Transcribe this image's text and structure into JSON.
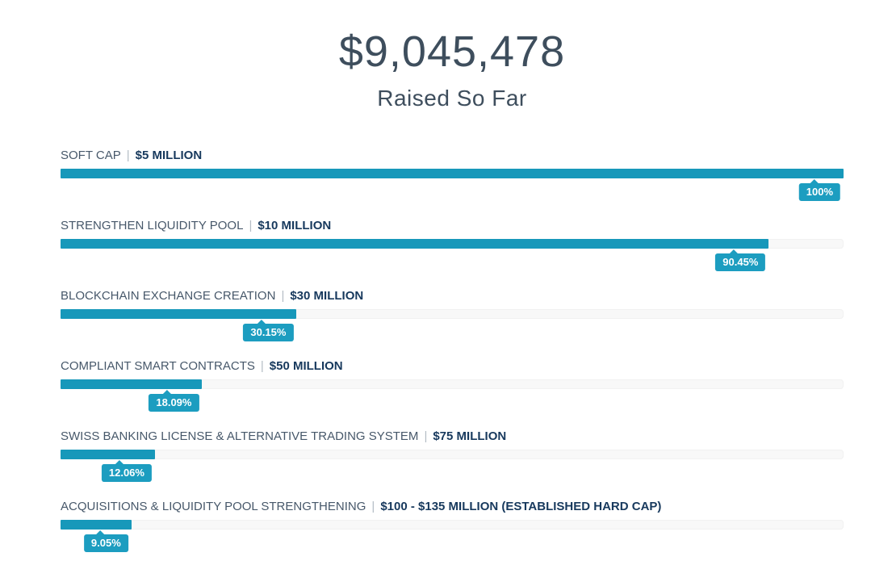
{
  "header": {
    "title": "$9,045,478",
    "subtitle": "Raised So Far"
  },
  "separator": "|",
  "milestones": [
    {
      "label": "SOFT CAP",
      "target": "$5 MILLION",
      "percent": "100%",
      "value": 100
    },
    {
      "label": "STRENGTHEN LIQUIDITY POOL",
      "target": "$10 MILLION",
      "percent": "90.45%",
      "value": 90.45
    },
    {
      "label": "BLOCKCHAIN EXCHANGE CREATION",
      "target": "$30 MILLION",
      "percent": "30.15%",
      "value": 30.15
    },
    {
      "label": "COMPLIANT SMART CONTRACTS",
      "target": "$50 MILLION",
      "percent": "18.09%",
      "value": 18.09
    },
    {
      "label": "SWISS BANKING LICENSE & ALTERNATIVE TRADING SYSTEM",
      "target": "$75 MILLION",
      "percent": "12.06%",
      "value": 12.06
    },
    {
      "label": "ACQUISITIONS & LIQUIDITY POOL STRENGTHENING",
      "target": "$100 - $135 MILLION (ESTABLISHED HARD CAP)",
      "percent": "9.05%",
      "value": 9.05
    }
  ],
  "colors": {
    "bar_fill": "#1798ba",
    "badge_background": "#1c9dc0",
    "badge_text": "#ffffff",
    "track_background": "#f8f8f8",
    "label_text": "#47586a",
    "target_text": "#17395d",
    "separator_text": "#b4bcc4",
    "title_text": "#3e4e5e"
  },
  "chart_data": {
    "type": "bar",
    "title": "$9,045,478 Raised So Far",
    "orientation": "horizontal",
    "categories": [
      "SOFT CAP | $5 MILLION",
      "STRENGTHEN LIQUIDITY POOL | $10 MILLION",
      "BLOCKCHAIN EXCHANGE CREATION | $30 MILLION",
      "COMPLIANT SMART CONTRACTS | $50 MILLION",
      "SWISS BANKING LICENSE & ALTERNATIVE TRADING SYSTEM | $75 MILLION",
      "ACQUISITIONS & LIQUIDITY POOL STRENGTHENING | $100 - $135 MILLION (ESTABLISHED HARD CAP)"
    ],
    "values": [
      100,
      90.45,
      30.15,
      18.09,
      12.06,
      9.05
    ],
    "data_labels": [
      "100%",
      "90.45%",
      "30.15%",
      "18.09%",
      "12.06%",
      "9.05%"
    ],
    "xlabel": "",
    "ylabel": "",
    "value_unit": "percent of milestone target reached",
    "xlim": [
      0,
      100
    ],
    "grid": false,
    "legend": false
  }
}
